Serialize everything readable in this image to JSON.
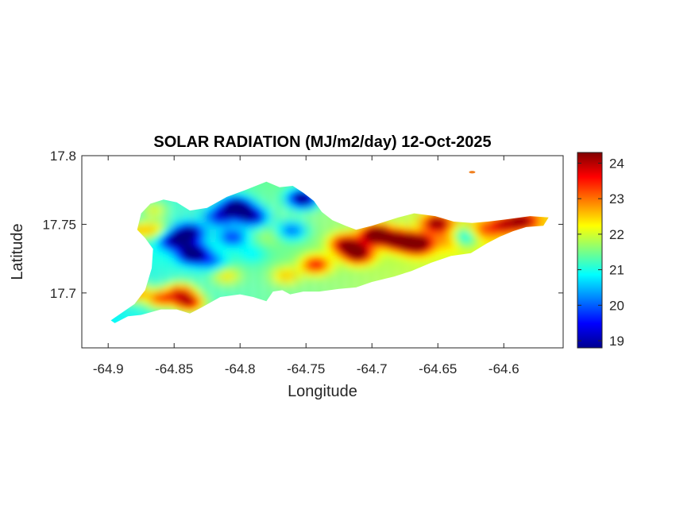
{
  "chart_data": {
    "type": "heatmap",
    "title": "SOLAR RADIATION (MJ/m2/day) 12-Oct-2025",
    "xlabel": "Longitude",
    "ylabel": "Latitude",
    "xlim": [
      -64.92,
      -64.555
    ],
    "ylim": [
      17.66,
      17.8
    ],
    "x_ticks": [
      -64.9,
      -64.85,
      -64.8,
      -64.75,
      -64.7,
      -64.65,
      -64.6
    ],
    "x_tick_labels": [
      "-64.9",
      "-64.85",
      "-64.8",
      "-64.75",
      "-64.7",
      "-64.65",
      "-64.6"
    ],
    "y_ticks": [
      17.7,
      17.75,
      17.8
    ],
    "y_tick_labels": [
      "17.7",
      "17.75",
      "17.8"
    ],
    "colorbar": {
      "colormap": "jet",
      "clim": [
        18.8,
        24.3
      ],
      "ticks": [
        19,
        20,
        21,
        22,
        23,
        24
      ],
      "tick_labels": [
        "19",
        "20",
        "21",
        "22",
        "23",
        "24"
      ]
    },
    "island_outline": [
      [
        -64.898,
        17.68
      ],
      [
        -64.88,
        17.692
      ],
      [
        -64.872,
        17.702
      ],
      [
        -64.867,
        17.718
      ],
      [
        -64.866,
        17.732
      ],
      [
        -64.872,
        17.74
      ],
      [
        -64.878,
        17.746
      ],
      [
        -64.875,
        17.758
      ],
      [
        -64.868,
        17.765
      ],
      [
        -64.858,
        17.768
      ],
      [
        -64.848,
        17.766
      ],
      [
        -64.838,
        17.76
      ],
      [
        -64.825,
        17.762
      ],
      [
        -64.81,
        17.77
      ],
      [
        -64.796,
        17.775
      ],
      [
        -64.78,
        17.781
      ],
      [
        -64.77,
        17.777
      ],
      [
        -64.76,
        17.778
      ],
      [
        -64.752,
        17.773
      ],
      [
        -64.744,
        17.767
      ],
      [
        -64.738,
        17.759
      ],
      [
        -64.73,
        17.753
      ],
      [
        -64.72,
        17.749
      ],
      [
        -64.712,
        17.746
      ],
      [
        -64.7,
        17.749
      ],
      [
        -64.69,
        17.752
      ],
      [
        -64.68,
        17.755
      ],
      [
        -64.668,
        17.758
      ],
      [
        -64.652,
        17.756
      ],
      [
        -64.638,
        17.752
      ],
      [
        -64.624,
        17.751
      ],
      [
        -64.612,
        17.752
      ],
      [
        -64.595,
        17.754
      ],
      [
        -64.58,
        17.756
      ],
      [
        -64.566,
        17.755
      ],
      [
        -64.57,
        17.749
      ],
      [
        -64.583,
        17.748
      ],
      [
        -64.593,
        17.745
      ],
      [
        -64.603,
        17.741
      ],
      [
        -64.613,
        17.736
      ],
      [
        -64.625,
        17.729
      ],
      [
        -64.64,
        17.727
      ],
      [
        -64.655,
        17.722
      ],
      [
        -64.67,
        17.716
      ],
      [
        -64.683,
        17.712
      ],
      [
        -64.7,
        17.708
      ],
      [
        -64.712,
        17.704
      ],
      [
        -64.725,
        17.703
      ],
      [
        -64.74,
        17.701
      ],
      [
        -64.752,
        17.701
      ],
      [
        -64.762,
        17.699
      ],
      [
        -64.768,
        17.702
      ],
      [
        -64.775,
        17.701
      ],
      [
        -64.78,
        17.694
      ],
      [
        -64.79,
        17.697
      ],
      [
        -64.8,
        17.699
      ],
      [
        -64.815,
        17.697
      ],
      [
        -64.83,
        17.689
      ],
      [
        -64.838,
        17.685
      ],
      [
        -64.848,
        17.688
      ],
      [
        -64.86,
        17.688
      ],
      [
        -64.875,
        17.684
      ],
      [
        -64.885,
        17.683
      ],
      [
        -64.895,
        17.678
      ]
    ],
    "islet": [
      -64.624,
      17.788
    ],
    "field_hotspots": [
      [
        -64.863,
        17.745,
        1.2
      ],
      [
        -64.878,
        17.745,
        1.3
      ],
      [
        -64.865,
        17.76,
        1.0
      ],
      [
        -64.88,
        17.7,
        2.0
      ],
      [
        -64.86,
        17.695,
        2.0
      ],
      [
        -64.838,
        17.692,
        2.5
      ],
      [
        -64.845,
        17.7,
        2.0
      ],
      [
        -64.81,
        17.712,
        1.0
      ],
      [
        -64.85,
        17.738,
        -2.2
      ],
      [
        -64.838,
        17.743,
        -2.5
      ],
      [
        -64.835,
        17.728,
        -3.0
      ],
      [
        -64.802,
        17.762,
        -3.2
      ],
      [
        -64.79,
        17.755,
        -2.3
      ],
      [
        -64.815,
        17.755,
        -1.8
      ],
      [
        -64.805,
        17.74,
        -1.5
      ],
      [
        -64.752,
        17.768,
        -3.0
      ],
      [
        -64.76,
        17.745,
        -1.4
      ],
      [
        -64.778,
        17.74,
        0.3
      ],
      [
        -64.765,
        17.712,
        1.0
      ],
      [
        -64.742,
        17.72,
        2.0
      ],
      [
        -64.72,
        17.735,
        2.5
      ],
      [
        -64.71,
        17.728,
        3.0
      ],
      [
        -64.697,
        17.742,
        3.5
      ],
      [
        -64.68,
        17.738,
        3.0
      ],
      [
        -64.665,
        17.735,
        3.5
      ],
      [
        -64.65,
        17.75,
        2.5
      ],
      [
        -64.64,
        17.738,
        1.0
      ],
      [
        -64.63,
        17.74,
        -1.5
      ],
      [
        -64.615,
        17.745,
        1.0
      ],
      [
        -64.6,
        17.749,
        1.5
      ],
      [
        -64.585,
        17.752,
        2.0
      ],
      [
        -64.82,
        17.722,
        -1.0
      ],
      [
        -64.79,
        17.728,
        -0.5
      ]
    ]
  }
}
